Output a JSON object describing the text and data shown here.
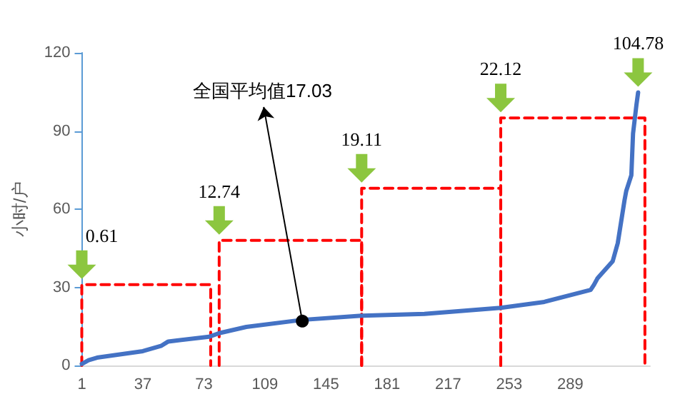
{
  "chart_data": {
    "type": "line",
    "ylabel": "小时/户",
    "xlim": [
      1,
      336
    ],
    "xticks": [
      1,
      37,
      73,
      109,
      145,
      181,
      217,
      253,
      289
    ],
    "ylim": [
      0,
      120
    ],
    "yticks": [
      0,
      30,
      60,
      90,
      120
    ],
    "grid": false,
    "marker": "none",
    "series": [
      {
        "color": "#4472c4",
        "x": [
          1,
          5,
          10,
          37,
          48,
          52,
          76,
          82,
          98,
          131,
          166,
          203,
          248,
          273,
          301,
          303,
          305,
          314,
          317,
          321,
          322,
          325,
          326,
          328,
          329
        ],
        "values": [
          0.6,
          2.0,
          3.0,
          5.5,
          7.6,
          9.2,
          11.0,
          12.4,
          14.8,
          17.5,
          19.1,
          19.8,
          22.1,
          24.3,
          29,
          31,
          33.4,
          40,
          47,
          63.5,
          67,
          73,
          89,
          100,
          104.8
        ]
      },
      {
        "color": "#ff0000",
        "line_style": "dashed",
        "x": [
          1,
          1,
          77,
          77
        ],
        "values": [
          0,
          31,
          31,
          0
        ]
      },
      {
        "color": "#ff0000",
        "line_style": "dashed",
        "x": [
          82,
          82,
          166,
          166
        ],
        "values": [
          0,
          48,
          48,
          0
        ]
      },
      {
        "color": "#ff0000",
        "line_style": "dashed",
        "x": [
          166,
          166,
          248,
          248
        ],
        "values": [
          0,
          68,
          68,
          0
        ]
      },
      {
        "color": "#ff0000",
        "line_style": "dashed",
        "x": [
          248,
          248,
          333,
          333
        ],
        "values": [
          0,
          95,
          95,
          0
        ]
      }
    ],
    "annotations": [
      {
        "text": "全国平均值17.03",
        "x": 131,
        "y": 17.03
      },
      "0.61",
      "12.74",
      "19.11",
      "22.12",
      "104.78"
    ]
  }
}
